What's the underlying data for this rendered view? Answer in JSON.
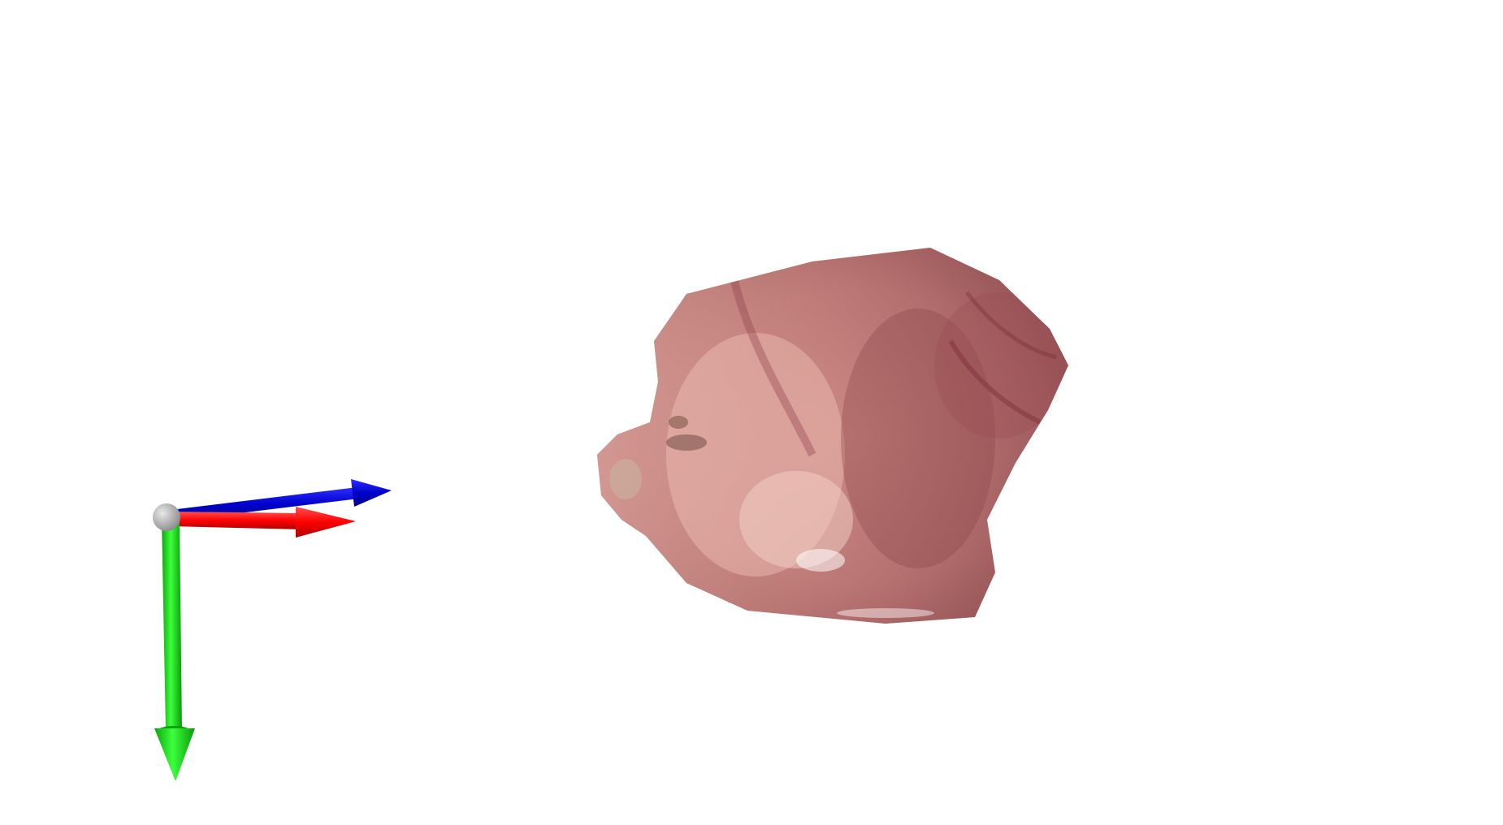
{
  "viewer": {
    "background_color": "#ffffff"
  },
  "axes_gizmo": {
    "origin_color": "#b4b4b4",
    "axes": [
      {
        "axis": "x",
        "color": "#ff0000"
      },
      {
        "axis": "y",
        "color": "#00e000"
      },
      {
        "axis": "z",
        "color": "#0000cc"
      }
    ]
  },
  "point_cloud": {
    "palette": [
      "#b06a6a",
      "#c98380",
      "#e0a49c",
      "#8a4548",
      "#f0c4b8"
    ]
  }
}
